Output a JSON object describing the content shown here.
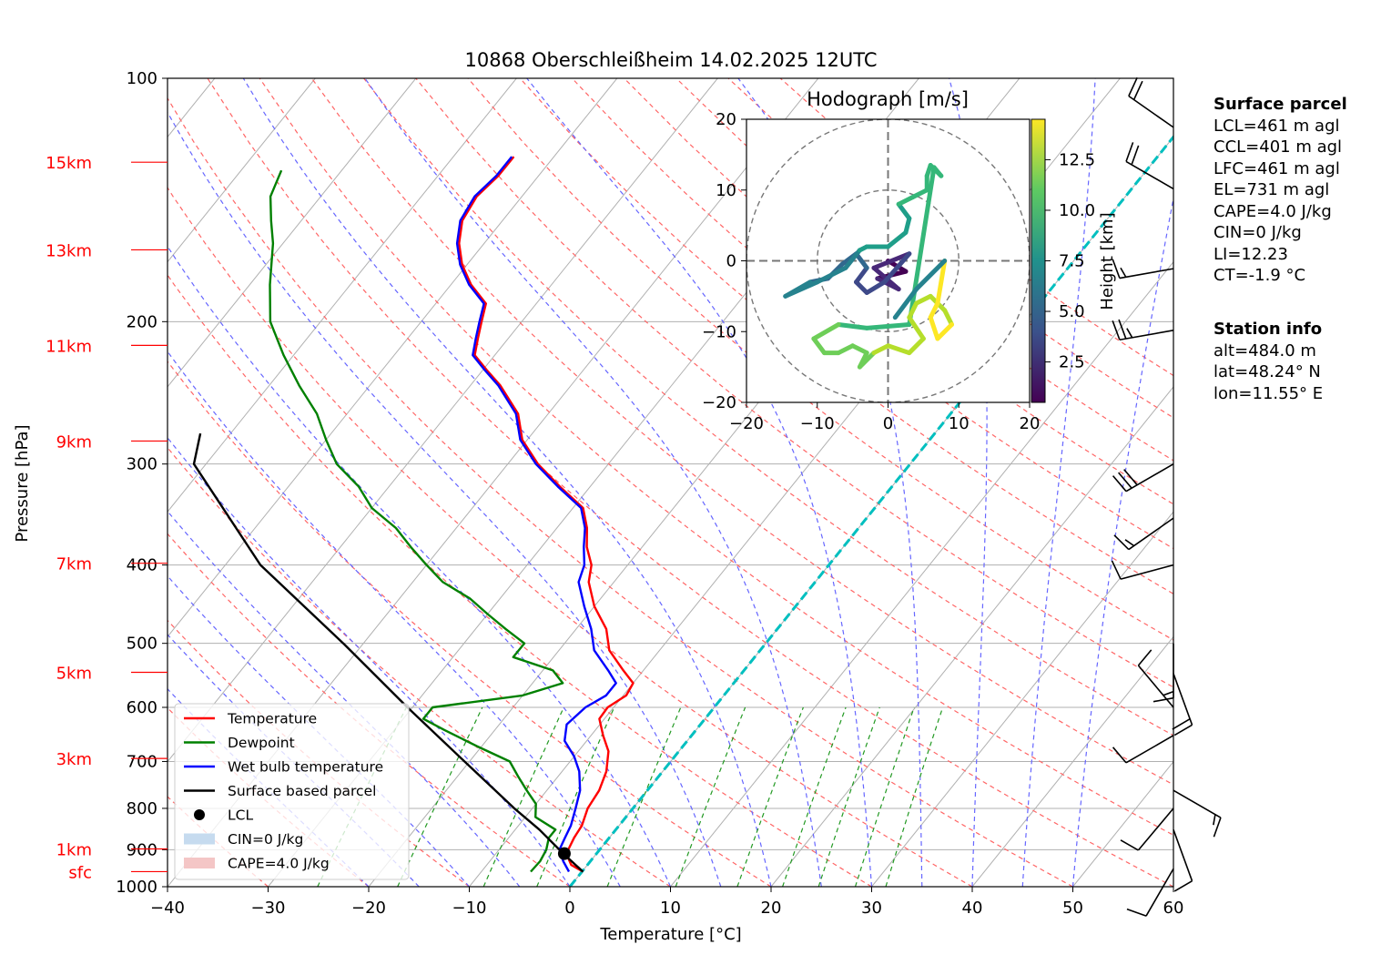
{
  "chart_data": {
    "type": "line",
    "title": "10868 Oberschleißheim 14.02.2025 12UTC",
    "xlabel": "Temperature [°C]",
    "ylabel": "Pressure [hPa]",
    "xlim": [
      -40,
      60
    ],
    "ylim": [
      1000,
      100
    ],
    "y_scale": "log",
    "x_ticks": [
      "−40",
      "−30",
      "−20",
      "−10",
      "0",
      "10",
      "20",
      "30",
      "40",
      "50",
      "60"
    ],
    "y_ticks": [
      "100",
      "200",
      "300",
      "400",
      "500",
      "600",
      "700",
      "800",
      "900",
      "1000"
    ],
    "height_markers": [
      {
        "label": "15km",
        "p": 127
      },
      {
        "label": "13km",
        "p": 163
      },
      {
        "label": "11km",
        "p": 214
      },
      {
        "label": "9km",
        "p": 281
      },
      {
        "label": "7km",
        "p": 398
      },
      {
        "label": "5km",
        "p": 543
      },
      {
        "label": "3km",
        "p": 694
      },
      {
        "label": "1km",
        "p": 898
      },
      {
        "label": "sfc",
        "p": 958
      }
    ],
    "series": [
      {
        "name": "Temperature",
        "color": "#ff0000",
        "points": [
          [
            958,
            0.1
          ],
          [
            940,
            -1.6
          ],
          [
            910,
            -3
          ],
          [
            870,
            -3.5
          ],
          [
            840,
            -3.7
          ],
          [
            800,
            -4.5
          ],
          [
            760,
            -4.8
          ],
          [
            720,
            -5.6
          ],
          [
            680,
            -7
          ],
          [
            650,
            -8.8
          ],
          [
            620,
            -10.5
          ],
          [
            600,
            -10.6
          ],
          [
            580,
            -9.7
          ],
          [
            560,
            -10
          ],
          [
            540,
            -12
          ],
          [
            510,
            -15
          ],
          [
            480,
            -17
          ],
          [
            450,
            -20
          ],
          [
            420,
            -22.5
          ],
          [
            400,
            -23.6
          ],
          [
            380,
            -25.5
          ],
          [
            360,
            -27
          ],
          [
            340,
            -29
          ],
          [
            320,
            -33
          ],
          [
            300,
            -37
          ],
          [
            280,
            -40.5
          ],
          [
            260,
            -43
          ],
          [
            240,
            -47
          ],
          [
            230,
            -49.5
          ],
          [
            220,
            -52
          ],
          [
            210,
            -53
          ],
          [
            200,
            -54
          ],
          [
            190,
            -55
          ],
          [
            180,
            -58
          ],
          [
            170,
            -60.5
          ],
          [
            160,
            -62.5
          ],
          [
            150,
            -64
          ],
          [
            140,
            -64.5
          ],
          [
            132,
            -64
          ],
          [
            125,
            -64
          ]
        ]
      },
      {
        "name": "Dewpoint",
        "color": "#008000",
        "points": [
          [
            958,
            -5.1
          ],
          [
            930,
            -5
          ],
          [
            900,
            -5.3
          ],
          [
            870,
            -6
          ],
          [
            850,
            -6
          ],
          [
            820,
            -9
          ],
          [
            790,
            -10
          ],
          [
            760,
            -12
          ],
          [
            730,
            -14
          ],
          [
            700,
            -16
          ],
          [
            670,
            -20.5
          ],
          [
            640,
            -25
          ],
          [
            620,
            -28
          ],
          [
            600,
            -28
          ],
          [
            580,
            -20
          ],
          [
            560,
            -17
          ],
          [
            540,
            -19
          ],
          [
            520,
            -24
          ],
          [
            500,
            -24
          ],
          [
            480,
            -27
          ],
          [
            460,
            -30
          ],
          [
            440,
            -33
          ],
          [
            420,
            -37
          ],
          [
            400,
            -40
          ],
          [
            380,
            -43
          ],
          [
            360,
            -46
          ],
          [
            340,
            -50
          ],
          [
            320,
            -53
          ],
          [
            300,
            -57
          ],
          [
            280,
            -60
          ],
          [
            260,
            -63
          ],
          [
            240,
            -67
          ],
          [
            220,
            -71
          ],
          [
            200,
            -75
          ],
          [
            180,
            -78
          ],
          [
            160,
            -81
          ],
          [
            150,
            -83
          ],
          [
            140,
            -85
          ],
          [
            130,
            -86
          ]
        ]
      },
      {
        "name": "Wet bulb temperature",
        "color": "#0000ff",
        "points": [
          [
            958,
            -1.3
          ],
          [
            930,
            -2.7
          ],
          [
            900,
            -4
          ],
          [
            870,
            -4.4
          ],
          [
            840,
            -4.8
          ],
          [
            800,
            -5.7
          ],
          [
            760,
            -6.7
          ],
          [
            720,
            -8.3
          ],
          [
            690,
            -10
          ],
          [
            660,
            -12.2
          ],
          [
            630,
            -13.3
          ],
          [
            600,
            -12.8
          ],
          [
            580,
            -11.7
          ],
          [
            560,
            -11.7
          ],
          [
            540,
            -13.5
          ],
          [
            510,
            -16.5
          ],
          [
            480,
            -18.5
          ],
          [
            450,
            -21
          ],
          [
            420,
            -23.5
          ],
          [
            400,
            -24.3
          ],
          [
            380,
            -25.8
          ],
          [
            360,
            -27.2
          ],
          [
            340,
            -29.2
          ],
          [
            320,
            -33.2
          ],
          [
            300,
            -37.2
          ],
          [
            280,
            -40.7
          ],
          [
            260,
            -43.2
          ],
          [
            240,
            -47.2
          ],
          [
            230,
            -49.7
          ],
          [
            220,
            -52.2
          ],
          [
            210,
            -53.2
          ],
          [
            200,
            -54.2
          ],
          [
            190,
            -55.2
          ],
          [
            180,
            -58.2
          ],
          [
            170,
            -60.7
          ],
          [
            160,
            -62.7
          ],
          [
            150,
            -64.2
          ],
          [
            140,
            -64.7
          ],
          [
            132,
            -64.2
          ],
          [
            125,
            -64.2
          ]
        ]
      },
      {
        "name": "Surface based parcel",
        "color": "#000000",
        "points": [
          [
            958,
            0.1
          ],
          [
            910,
            -3.3
          ],
          [
            850,
            -7.6
          ],
          [
            800,
            -11.8
          ],
          [
            700,
            -20.5
          ],
          [
            600,
            -30.5
          ],
          [
            500,
            -42
          ],
          [
            400,
            -56.5
          ],
          [
            300,
            -71.2
          ],
          [
            275,
            -73
          ]
        ]
      }
    ],
    "lcl": {
      "name": "LCL",
      "p": 910,
      "t": -3.2,
      "color": "#000000"
    },
    "legend_extra": [
      "CIN=0 J/kg",
      "CAPE=4.0 J/kg"
    ],
    "legend_position": "lower-left",
    "grid": true,
    "background_lines": [
      "isotherms",
      "dry adiabats",
      "moist adiabats",
      "mixing ratio lines"
    ],
    "zero_isotherm_color": "#00bfbf",
    "wind_barbs": [
      {
        "p": 115,
        "speed_kt": 20,
        "dir": 305
      },
      {
        "p": 137,
        "speed_kt": 20,
        "dir": 300
      },
      {
        "p": 172,
        "speed_kt": 15,
        "dir": 260
      },
      {
        "p": 205,
        "speed_kt": 25,
        "dir": 260
      },
      {
        "p": 300,
        "speed_kt": 30,
        "dir": 240
      },
      {
        "p": 350,
        "speed_kt": 15,
        "dir": 235
      },
      {
        "p": 400,
        "speed_kt": 10,
        "dir": 255
      },
      {
        "p": 500,
        "speed_kt": 15,
        "dir": 180
      },
      {
        "p": 545,
        "speed_kt": 20,
        "dir": 160
      },
      {
        "p": 600,
        "speed_kt": 10,
        "dir": 320
      },
      {
        "p": 650,
        "speed_kt": 10,
        "dir": 240
      },
      {
        "p": 760,
        "speed_kt": 15,
        "dir": 120
      },
      {
        "p": 800,
        "speed_kt": 10,
        "dir": 220
      },
      {
        "p": 850,
        "speed_kt": 10,
        "dir": 160
      },
      {
        "p": 950,
        "speed_kt": 10,
        "dir": 210
      }
    ],
    "hodograph": {
      "title": "Hodograph [m/s]",
      "xlim": [
        -20,
        20
      ],
      "ylim": [
        -20,
        20
      ],
      "ticks": [
        "−20",
        "−10",
        "0",
        "10",
        "20"
      ],
      "ring_radii": [
        10,
        20
      ],
      "colorbar_label": "Height [km]",
      "colorbar_ticks": [
        "2.5",
        "5.0",
        "7.5",
        "10.0",
        "12.5"
      ],
      "colorbar_range": [
        0.5,
        14.5
      ],
      "points": [
        [
          0,
          0,
          0.5
        ],
        [
          2.5,
          -1.5,
          1
        ],
        [
          -1.5,
          -2.5,
          1.5
        ],
        [
          1.5,
          -4,
          2
        ],
        [
          -2,
          -1,
          2.5
        ],
        [
          3,
          1,
          3
        ],
        [
          -0.5,
          -3,
          3.3
        ],
        [
          -3,
          -4.5,
          3.6
        ],
        [
          -4.5,
          -3,
          4
        ],
        [
          -3,
          -1,
          4.4
        ],
        [
          -4.5,
          1,
          4.8
        ],
        [
          -6.5,
          -0.5,
          5.2
        ],
        [
          -8.5,
          -2.5,
          5.6
        ],
        [
          -11,
          -3,
          6
        ],
        [
          -14.5,
          -5,
          6.4
        ],
        [
          -10,
          -3,
          6.8
        ],
        [
          -6,
          -1,
          7.2
        ],
        [
          -4,
          1.5,
          7.6
        ],
        [
          -3,
          2,
          7.9
        ],
        [
          0,
          2,
          8.2
        ],
        [
          2.5,
          4,
          8.5
        ],
        [
          3,
          6,
          8.8
        ],
        [
          1.5,
          8,
          9.1
        ],
        [
          3.5,
          9,
          9.3
        ],
        [
          5.5,
          10,
          9.5
        ],
        [
          5.5,
          12,
          9.7
        ],
        [
          6,
          13.5,
          9.9
        ],
        [
          7.5,
          12,
          10.1
        ],
        [
          6.5,
          13.2,
          10.2
        ],
        [
          3,
          -9,
          10.4
        ],
        [
          -3,
          -9.5,
          10.6
        ],
        [
          -7,
          -9,
          10.8
        ],
        [
          -10.5,
          -11,
          11
        ],
        [
          -9,
          -13,
          11.2
        ],
        [
          -7,
          -13,
          11.4
        ],
        [
          -5,
          -12,
          11.6
        ],
        [
          -3,
          -13,
          11.8
        ],
        [
          -4,
          -15,
          12
        ],
        [
          -2,
          -13,
          12.2
        ],
        [
          0,
          -12,
          12.4
        ],
        [
          3,
          -13,
          12.6
        ],
        [
          5,
          -11,
          12.8
        ],
        [
          3,
          -8,
          13
        ],
        [
          4,
          -6,
          13.2
        ],
        [
          6,
          -5,
          13.4
        ],
        [
          8,
          -7,
          13.6
        ],
        [
          9,
          -9,
          13.8
        ],
        [
          7,
          -11,
          14
        ],
        [
          6,
          -8,
          14.2
        ],
        [
          7,
          -6,
          14.4
        ],
        [
          8,
          0,
          6.8
        ],
        [
          4,
          -4,
          6.6
        ],
        [
          1,
          -8,
          6.4
        ]
      ]
    }
  },
  "surface_parcel": {
    "header": "Surface parcel",
    "lines": [
      "LCL=461 m agl",
      "CCL=401 m agl",
      "LFC=461 m agl",
      "EL=731 m agl",
      "CAPE=4.0 J/kg",
      "CIN=0 J/kg",
      "LI=12.23",
      "CT=-1.9 °C"
    ]
  },
  "station_info": {
    "header": "Station info",
    "lines": [
      "alt=484.0 m",
      "lat=48.24° N",
      "lon=11.55° E"
    ]
  },
  "colors": {
    "dry_adiabat": "#ff6666",
    "moist_adiabat": "#6666ff",
    "mixing_ratio": "#229922",
    "isotherm": "#b0b0b0",
    "height_labels": "#ff0000",
    "cin_fill": "#c6dbef",
    "cape_fill": "#f4c6c6"
  }
}
